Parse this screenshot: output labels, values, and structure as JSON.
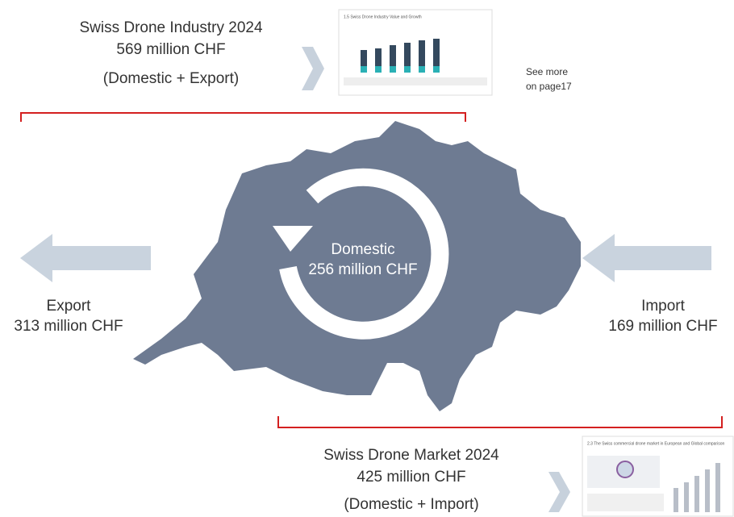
{
  "industry": {
    "title": "Swiss Drone Industry 2024",
    "value": "569 million CHF",
    "note": "(Domestic + Export)",
    "thumbnail_title": "1.5 Swiss Drone Industry Value and Growth",
    "link": [
      "See more",
      "on page17"
    ]
  },
  "domestic": {
    "label": "Domestic",
    "value": "256 million CHF"
  },
  "export": {
    "label": "Export",
    "value": "313 million CHF"
  },
  "import": {
    "label": "Import",
    "value": "169 million CHF"
  },
  "market": {
    "title": "Swiss Drone Market 2024",
    "value": "425 million CHF",
    "note": "(Domestic + Import)",
    "thumbnail_title": "2.3 The Swiss commercial drone market in European and Global comparison"
  }
}
